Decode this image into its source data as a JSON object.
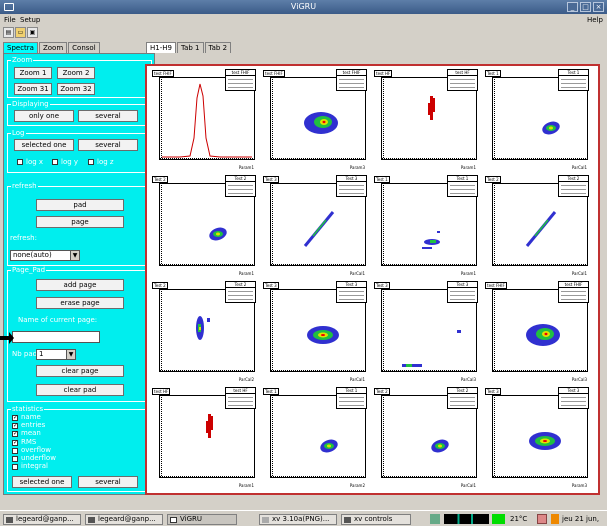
{
  "window": {
    "title": "ViGRU"
  },
  "menu": {
    "file": "File",
    "setup": "Setup",
    "help": "Help"
  },
  "toolbar": {
    "icons": [
      "open-icon",
      "folder-icon",
      "save-icon"
    ]
  },
  "main_tabs": [
    "Spectra",
    "Zoom",
    "Consol"
  ],
  "canvas_tabs": [
    "H1-H9",
    "Tab 1",
    "Tab 2"
  ],
  "zoom": {
    "legend": "Zoom",
    "buttons": [
      "Zoom 1",
      "Zoom 2",
      "Zoom 31",
      "Zoom 32"
    ]
  },
  "displaying": {
    "legend": "Displaying",
    "only_one": "only one",
    "several": "several"
  },
  "log": {
    "legend": "Log",
    "selected_one": "selected one",
    "several": "several",
    "log_x": "log x",
    "log_y": "log y",
    "log_z": "log z"
  },
  "refresh": {
    "legend": "refresh",
    "pad": "pad",
    "page": "page",
    "label": "refresh:",
    "select_value": "none(auto)"
  },
  "page_pad": {
    "legend": "Page_Pad",
    "add_page": "add page",
    "erase_page": "erase page",
    "name_label": "Name of current page:",
    "name_value": "",
    "nb_pad_label": "Nb pad:",
    "nb_pad_value": "1",
    "clear_page": "clear page",
    "clear_pad": "clear pad"
  },
  "statistics": {
    "legend": "statistics",
    "items": [
      {
        "label": "name",
        "checked": true
      },
      {
        "label": "entries",
        "checked": true
      },
      {
        "label": "mean",
        "checked": true
      },
      {
        "label": "RMS",
        "checked": true
      },
      {
        "label": "overflow",
        "checked": false
      },
      {
        "label": "underflow",
        "checked": false
      },
      {
        "label": "integral",
        "checked": false
      }
    ],
    "selected_one": "selected one",
    "several": "several"
  },
  "pads": [
    {
      "title": "test FHIF",
      "kind": "peak",
      "xlabel": "Param1"
    },
    {
      "title": "test FHIF",
      "kind": "blob",
      "xlabel": "Param3"
    },
    {
      "title": "test HF",
      "kind": "streak",
      "xlabel": "Param1"
    },
    {
      "title": "Test 1",
      "kind": "blob-small",
      "xlabel": "ParCal1"
    },
    {
      "title": "Test 2",
      "kind": "blob-small",
      "xlabel": "Param1"
    },
    {
      "title": "Test 3",
      "kind": "diag",
      "xlabel": "ParCal1"
    },
    {
      "title": "Test 1",
      "kind": "scatter-small",
      "xlabel": "Param1"
    },
    {
      "title": "Test 2",
      "kind": "diag",
      "xlabel": "ParCal1"
    },
    {
      "title": "Test 2",
      "kind": "vblob",
      "xlabel": "ParCal2"
    },
    {
      "title": "Test 3",
      "kind": "blob-wide",
      "xlabel": "ParCal1"
    },
    {
      "title": "Test 3",
      "kind": "multi",
      "xlabel": "ParCal3"
    },
    {
      "title": "test FHIF",
      "kind": "blob",
      "xlabel": "ParCal3"
    },
    {
      "title": "test HF",
      "kind": "streak",
      "xlabel": "Param1"
    },
    {
      "title": "Test 1",
      "kind": "blob-small",
      "xlabel": "Param2"
    },
    {
      "title": "Test 2",
      "kind": "blob-small",
      "xlabel": "ParCal1"
    },
    {
      "title": "Test 3",
      "kind": "blob-wide",
      "xlabel": "Param3"
    }
  ],
  "taskbar": {
    "tasks": [
      "legeard@ganp...",
      "legeard@ganp...",
      "ViGRU",
      "xv 3.10a(PNG)...",
      "xv controls"
    ],
    "temperature": "21°C",
    "clock": "jeu 21 jun,"
  }
}
